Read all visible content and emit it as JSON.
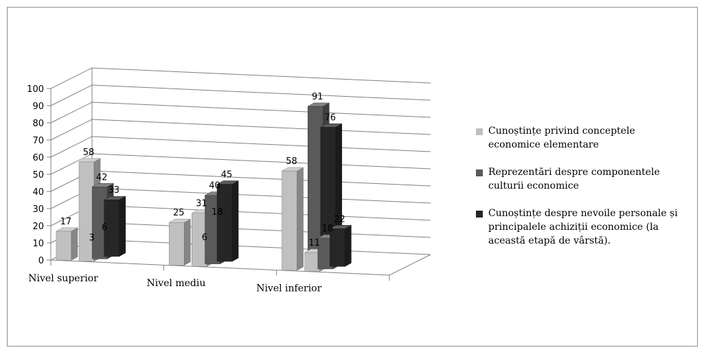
{
  "chart_data": {
    "type": "bar",
    "subtype": "3d-clustered-column",
    "categories": [
      "Nivel superior",
      "Nivel mediu",
      "Nivel inferior"
    ],
    "series": [
      {
        "name": "Cunoștințe privind conceptele economice elementare",
        "color": "#c0c0c0",
        "values": [
          17,
          25,
          58
        ]
      },
      {
        "name": "Reprezentări despre componentele culturii economice",
        "color": "#5a5a5a",
        "values": [
          3,
          6,
          91
        ]
      },
      {
        "name": "Cunoștințe despre nevoile personale și principalele achiziții economice (la această etapă de vârstă).",
        "color": "#262626",
        "values": [
          6,
          18,
          76
        ]
      },
      {
        "color": "#c0c0c0",
        "values": [
          58,
          31,
          11
        ]
      },
      {
        "color": "#5a5a5a",
        "values": [
          42,
          40,
          18
        ]
      },
      {
        "color": "#262626",
        "values": [
          33,
          45,
          22
        ]
      }
    ],
    "yticks": [
      0,
      10,
      20,
      30,
      40,
      50,
      60,
      70,
      80,
      90,
      100
    ],
    "ylim": [
      0,
      100
    ],
    "grid": true,
    "legend_position": "right"
  },
  "legend": {
    "items": [
      {
        "lines": [
          "Cunoștințe privind conceptele",
          "economice elementare"
        ],
        "color": "#c0c0c0"
      },
      {
        "lines": [
          "Reprezentări despre componentele",
          "culturii economice"
        ],
        "color": "#5a5a5a"
      },
      {
        "lines": [
          "Cunoștințe despre nevoile personale și",
          "principalele achiziții economice (la",
          "această etapă de vârstă)."
        ],
        "color": "#262626"
      }
    ]
  }
}
